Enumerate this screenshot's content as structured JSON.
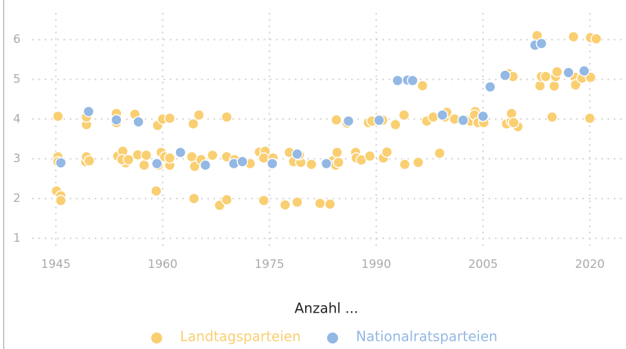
{
  "chart_data": {
    "type": "scatter",
    "legend_title": "Anzahl ...",
    "xlim": [
      1941.5,
      2024.5
    ],
    "xticks": [
      1945,
      1960,
      1975,
      1990,
      2005,
      2020
    ],
    "ylim": [
      0.6,
      6.65
    ],
    "yticks": [
      1,
      2,
      3,
      4,
      5,
      6
    ],
    "grid": true,
    "series": [
      {
        "name": "Landtagsparteien",
        "color": "#f9cf72",
        "x": [
          1945.3,
          1945.3,
          1945.3,
          1945.1,
          1945.7,
          1945.7,
          1949.3,
          1949.3,
          1949.2,
          1949.3,
          1949.7,
          1953.5,
          1953.5,
          1953.7,
          1954.4,
          1954.8,
          1954.3,
          1955.2,
          1956.1,
          1956.5,
          1957.4,
          1957.7,
          1959.1,
          1959.3,
          1960,
          1959.8,
          1960.3,
          1959.4,
          1961,
          1961,
          1961,
          1964.1,
          1964.3,
          1964.5,
          1964.4,
          1965.1,
          1965.4,
          1967,
          1968,
          1969,
          1969,
          1969,
          1970.1,
          1972.3,
          1973.6,
          1974.4,
          1974.2,
          1974.2,
          1975.5,
          1975.5,
          1977.2,
          1977.8,
          1978.4,
          1978.9,
          1979.4,
          1979.2,
          1980.9,
          1982.1,
          1983.5,
          1983.9,
          1984.3,
          1984.7,
          1984.5,
          1984.4,
          1985.9,
          1987.1,
          1987.2,
          1987.9,
          1989.1,
          1988.9,
          1989.4,
          1990.9,
          1991,
          1991.5,
          1992.7,
          1993.9,
          1994,
          1995.9,
          1996.5,
          1997.1,
          1998,
          1998.9,
          1999.6,
          1999.9,
          2001,
          2002.6,
          2003.2,
          2003.9,
          2003.8,
          2004.3,
          2005.1,
          2008.3,
          2008.6,
          2009,
          2009,
          2009.2,
          2009.9,
          2009.3,
          2012.6,
          2013,
          2013.2,
          2013.8,
          2014.7,
          2015,
          2015.2,
          2015.4,
          2017.7,
          2017.9,
          2018,
          2018.9,
          2020.1,
          2020,
          2020.1,
          2020.9
        ],
        "values": [
          4.07,
          3.05,
          2.93,
          2.19,
          2.07,
          1.95,
          3.86,
          4.05,
          2.93,
          3.05,
          2.95,
          4.14,
          3.91,
          3.07,
          3.19,
          2.9,
          2.98,
          2.98,
          4.12,
          3.1,
          2.84,
          3.09,
          2.19,
          3.84,
          4.0,
          3.16,
          3.05,
          2.84,
          4.02,
          2.84,
          3.02,
          3.05,
          3.88,
          2.81,
          2.0,
          4.1,
          2.98,
          3.09,
          1.83,
          4.05,
          3.05,
          1.97,
          2.98,
          2.88,
          3.17,
          3.19,
          3.02,
          1.95,
          3.02,
          2.88,
          1.84,
          3.16,
          2.93,
          1.91,
          2.91,
          3.1,
          2.86,
          1.88,
          1.86,
          2.95,
          2.84,
          2.91,
          3.16,
          3.98,
          3.9,
          3.16,
          3.02,
          2.97,
          3.07,
          3.91,
          3.95,
          3.97,
          3.02,
          3.17,
          3.86,
          4.1,
          2.86,
          2.91,
          4.84,
          3.95,
          4.05,
          3.14,
          4.05,
          4.17,
          4.0,
          3.98,
          3.95,
          4.19,
          4.1,
          3.91,
          3.91,
          3.88,
          5.14,
          3.95,
          4.14,
          5.07,
          3.81,
          3.91,
          6.1,
          4.84,
          5.07,
          5.07,
          4.05,
          4.83,
          5.07,
          5.19,
          6.07,
          5.05,
          4.86,
          5.03,
          5.05,
          4.02,
          6.05,
          6.02
        ]
      },
      {
        "name": "Nationalratsparteien",
        "color": "#93b8e4",
        "x": [
          1945.7,
          1949.6,
          1953.5,
          1956.6,
          1959.2,
          1962.5,
          1966,
          1970,
          1971.2,
          1975.4,
          1978.9,
          1983,
          1986.1,
          1990.4,
          1993,
          1994.4,
          1995.1,
          1999.3,
          2002.2,
          2005,
          2006,
          2008.1,
          2012.3,
          2013.2,
          2017,
          2019.2
        ],
        "values": [
          2.9,
          4.19,
          3.98,
          3.93,
          2.88,
          3.16,
          2.84,
          2.88,
          2.93,
          2.88,
          3.12,
          2.88,
          3.95,
          3.97,
          4.97,
          4.98,
          4.97,
          4.1,
          3.97,
          4.07,
          4.81,
          5.1,
          5.86,
          5.9,
          5.17,
          5.21
        ]
      }
    ]
  }
}
